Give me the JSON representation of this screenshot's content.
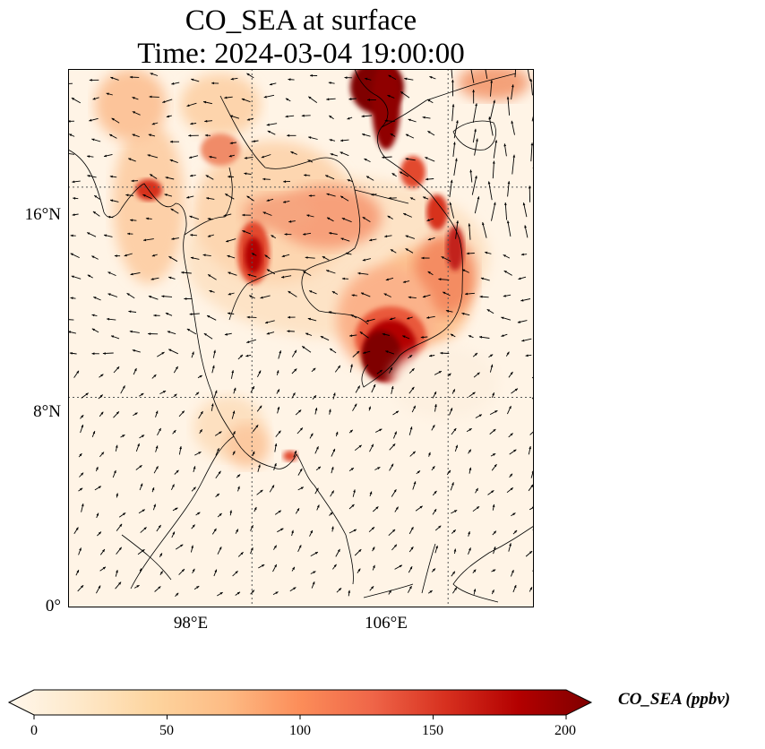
{
  "title": {
    "line1": "CO_SEA at surface",
    "line2": "Time: 2024-03-04 19:00:00"
  },
  "map": {
    "lat_range": [
      0,
      20.5
    ],
    "lon_range": [
      90.5,
      109.5
    ],
    "lat_ticks": [
      {
        "value": 0,
        "label": "0°"
      },
      {
        "value": 8,
        "label": "8°N"
      },
      {
        "value": 16,
        "label": "16°N"
      }
    ],
    "lon_ticks": [
      {
        "value": 98,
        "label": "98°E"
      },
      {
        "value": 106,
        "label": "106°E"
      }
    ],
    "gridlines": "dotted",
    "overlay": "wind vectors"
  },
  "colorbar": {
    "label": "CO_SEA (ppbv)",
    "ticks": [
      "0",
      "50",
      "100",
      "150",
      "200"
    ],
    "min": 0,
    "max": 200,
    "colormap": "OrRd",
    "colors": [
      "#fff7ec",
      "#fee8c8",
      "#fdd49e",
      "#fdbb84",
      "#fc8d59",
      "#ef6548",
      "#d7301f",
      "#b30000",
      "#7f0000"
    ]
  }
}
